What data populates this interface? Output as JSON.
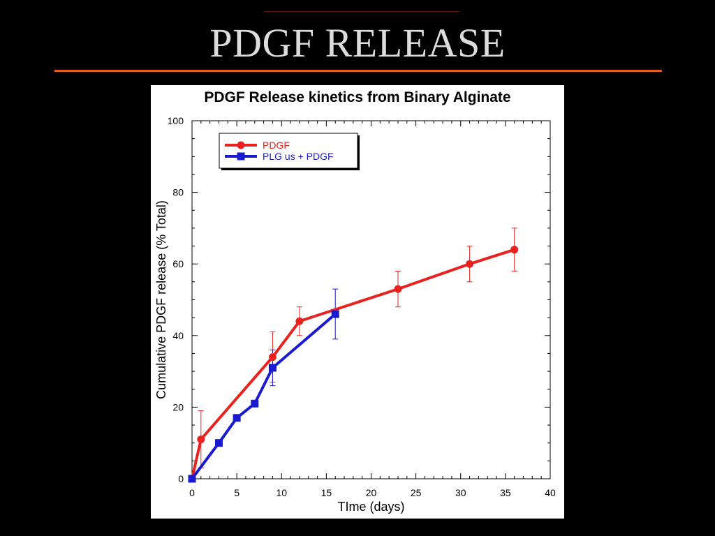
{
  "slide": {
    "title": "PDGF RELEASE"
  },
  "colors": {
    "background": "#000000",
    "title": "#dcdcdc",
    "accent_rule": "#e35a24",
    "panel": "#ffffff"
  },
  "chart_data": {
    "type": "line",
    "title": "PDGF Release kinetics from Binary Alginate",
    "xlabel": "TIme (days)",
    "ylabel": "Cumulative PDGF release (% Total)",
    "xlim": [
      0,
      40
    ],
    "ylim": [
      0,
      100
    ],
    "xticks": [
      0,
      5,
      10,
      15,
      20,
      25,
      30,
      35,
      40
    ],
    "yticks": [
      0,
      20,
      40,
      60,
      80,
      100
    ],
    "grid": false,
    "legend_position": "top-left",
    "series": [
      {
        "name": "PDGF",
        "color": "#e8231f",
        "marker": "circle",
        "x": [
          0,
          1,
          9,
          12,
          23,
          31,
          36
        ],
        "y": [
          0,
          11,
          34,
          44,
          53,
          60,
          64
        ],
        "error": [
          0,
          8,
          7,
          4,
          5,
          5,
          6
        ]
      },
      {
        "name": "PLG us + PDGF",
        "color": "#1a1ad0",
        "marker": "square",
        "x": [
          0,
          3,
          5,
          7,
          9,
          16
        ],
        "y": [
          0,
          10,
          17,
          21,
          31,
          46
        ],
        "error": [
          0,
          0,
          0,
          0,
          5,
          7
        ]
      }
    ]
  }
}
